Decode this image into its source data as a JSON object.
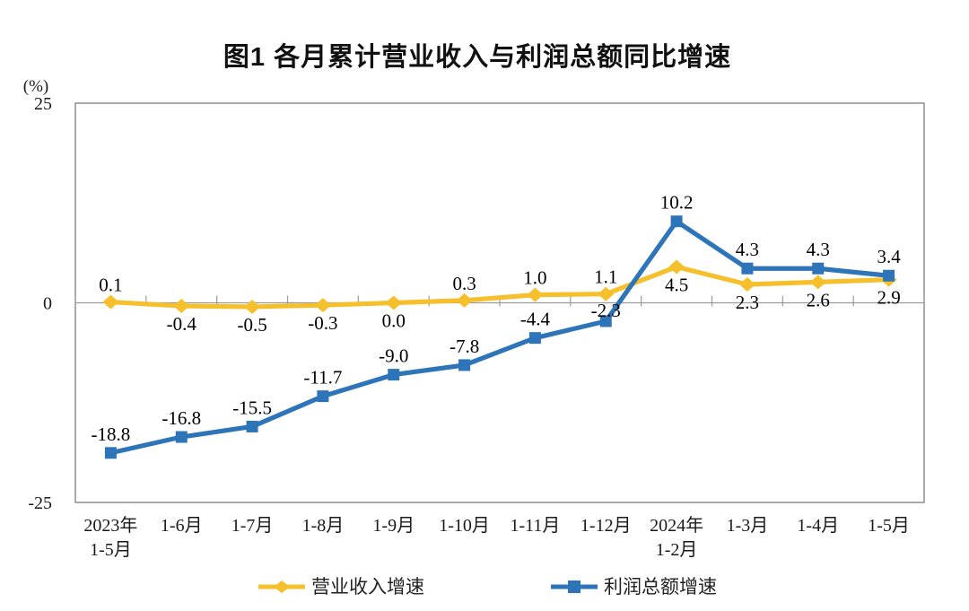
{
  "chart_data": {
    "type": "line",
    "title": "图1 各月累计营业收入与利润总额同比增速",
    "ylabel_unit": "(%)",
    "xlabel": "",
    "ylim": [
      -25,
      25
    ],
    "y_ticks": [
      25,
      0,
      -25
    ],
    "grid": false,
    "legend_position": "bottom",
    "categories": [
      [
        "2023年",
        "1-5月"
      ],
      [
        "1-6月"
      ],
      [
        "1-7月"
      ],
      [
        "1-8月"
      ],
      [
        "1-9月"
      ],
      [
        "1-10月"
      ],
      [
        "1-11月"
      ],
      [
        "1-12月"
      ],
      [
        "2024年",
        "1-2月"
      ],
      [
        "1-3月"
      ],
      [
        "1-4月"
      ],
      [
        "1-5月"
      ]
    ],
    "series": [
      {
        "name": "营业收入增速",
        "marker": "diamond",
        "color": "#F6BF2C",
        "values": [
          0.1,
          -0.4,
          -0.5,
          -0.3,
          0.0,
          0.3,
          1.0,
          1.1,
          4.5,
          2.3,
          2.6,
          2.9
        ],
        "label_side": [
          "above",
          "below",
          "below",
          "below",
          "below",
          "above",
          "above",
          "above",
          "below",
          "below",
          "below",
          "below"
        ]
      },
      {
        "name": "利润总额增速",
        "marker": "square",
        "color": "#2E74B8",
        "values": [
          -18.8,
          -16.8,
          -15.5,
          -11.7,
          -9.0,
          -7.8,
          -4.4,
          -2.3,
          10.2,
          4.3,
          4.3,
          3.4
        ],
        "label_side": [
          "above",
          "above",
          "above",
          "above",
          "above",
          "above",
          "above",
          "above",
          "above",
          "above",
          "above",
          "above"
        ]
      }
    ]
  },
  "colors": {
    "axis_border": "#858585",
    "zero_line": "#9B9B9B",
    "title_text": "#111111"
  }
}
